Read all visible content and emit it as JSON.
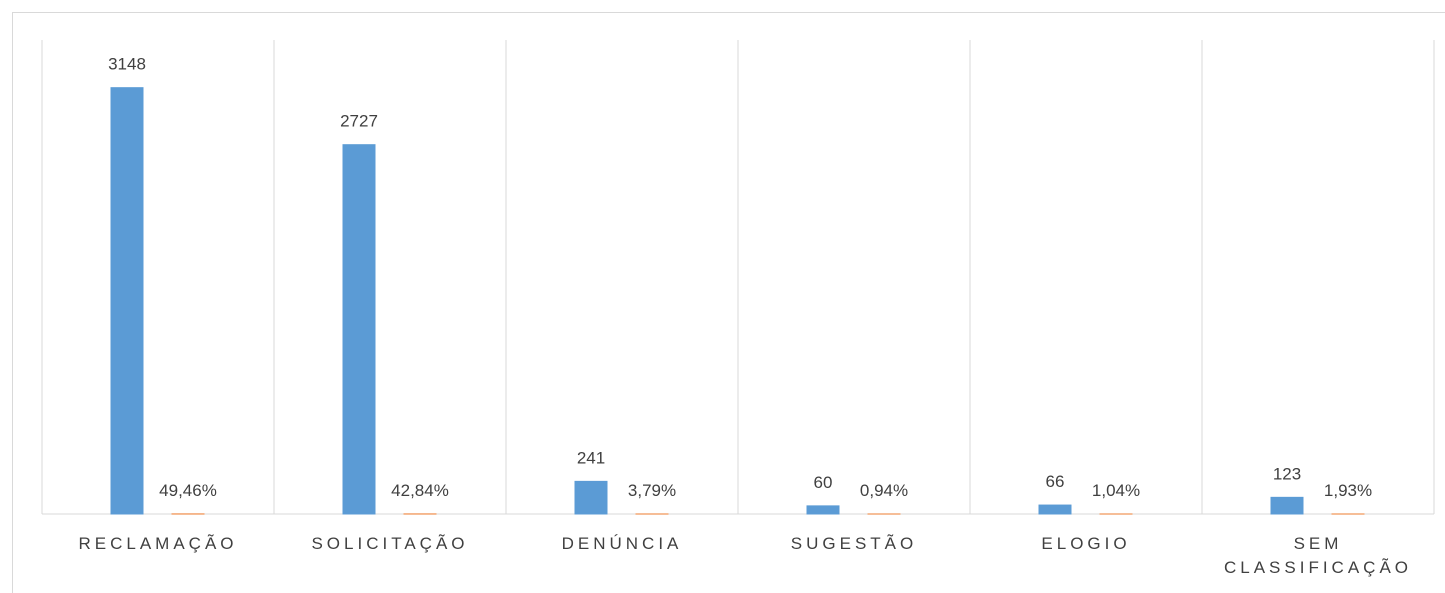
{
  "chart_data": {
    "type": "bar",
    "categories": [
      "RECLAMAÇÃO",
      "SOLICITAÇÃO",
      "DENÚNCIA",
      "SUGESTÃO",
      "ELOGIO",
      "SEM CLASSIFICAÇÃO"
    ],
    "series": [
      {
        "color": "#5b9bd5",
        "values": [
          3148,
          2727,
          241,
          60,
          66,
          123
        ]
      },
      {
        "color": "#ed7d31",
        "values": [
          0.4946,
          0.4284,
          0.0379,
          0.0094,
          0.0104,
          0.0193
        ],
        "value_labels": [
          "49,46%",
          "42,84%",
          "3,79%",
          "0,94%",
          "1,04%",
          "1,93%"
        ]
      }
    ],
    "ylim": [
      0,
      3500
    ]
  }
}
